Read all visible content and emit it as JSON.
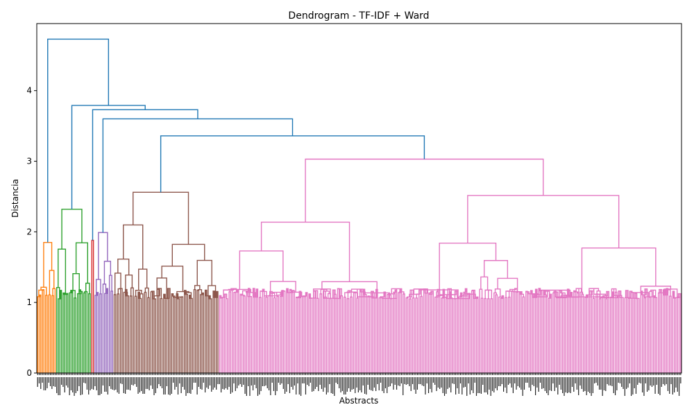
{
  "chart_data": {
    "type": "dendrogram",
    "title": "Dendrogram - TF-IDF + Ward",
    "xlabel": "Abstracts",
    "ylabel": "Distancia",
    "ylim": [
      0,
      4.95
    ],
    "yticks": [
      0,
      1,
      2,
      3,
      4
    ],
    "grid": false,
    "legend": "none",
    "link_color_above_threshold": "#1f77b4",
    "clusters": [
      {
        "color": "#ff7f0e",
        "leaves": 12,
        "merge_height": 1.85
      },
      {
        "color": "#2ca02c",
        "leaves": 22,
        "merge_height": 2.32
      },
      {
        "color": "#d62728",
        "leaves": 2,
        "merge_height": 1.88
      },
      {
        "color": "#9467bd",
        "leaves": 12,
        "merge_height": 1.99
      },
      {
        "color": "#8c564b",
        "leaves": 66,
        "merge_height": 2.56
      },
      {
        "color": "#e377c2",
        "leaves": 290,
        "merge_height": 3.03
      }
    ],
    "top_links": [
      {
        "height": 4.73
      },
      {
        "height": 3.79
      },
      {
        "height": 3.73
      },
      {
        "height": 3.6
      },
      {
        "height": 3.36
      }
    ]
  }
}
